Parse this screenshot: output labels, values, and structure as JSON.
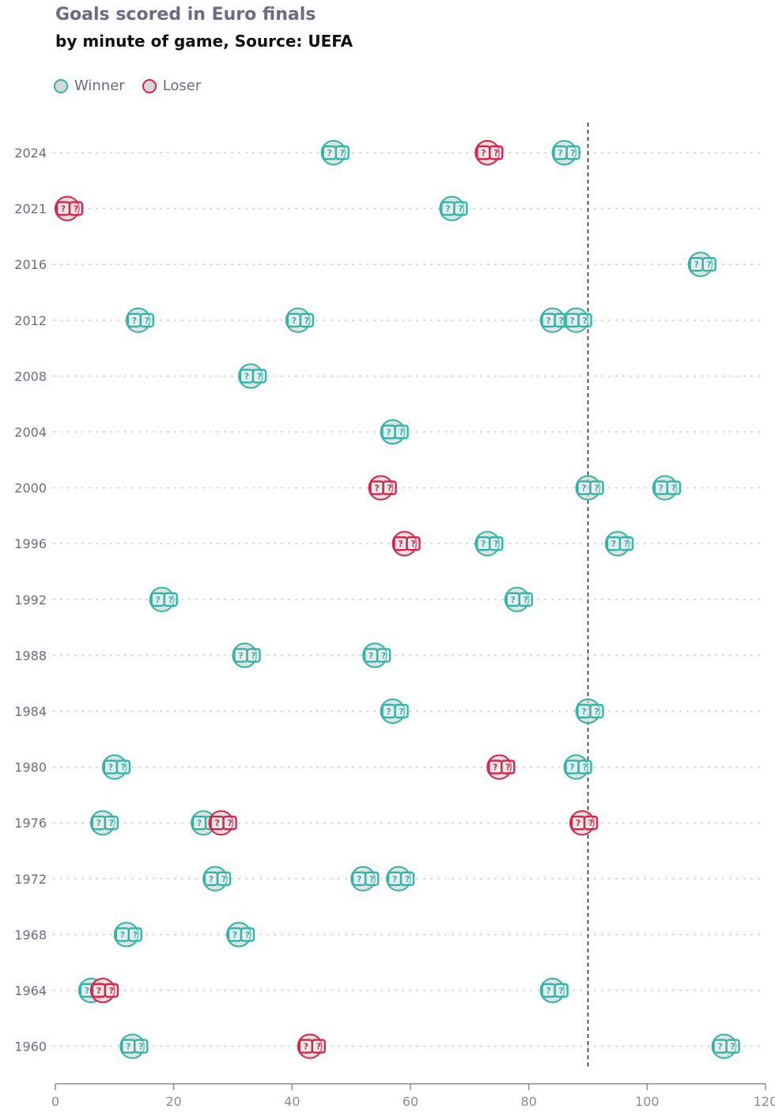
{
  "title": "Goals scored in Euro finals",
  "subtitle": "by minute of game, Source: UEFA",
  "legend": {
    "winner": "Winner",
    "loser": "Loser"
  },
  "colors": {
    "winner": "#2fb5ac",
    "loser": "#e0204a",
    "fill": "#d6d9d6",
    "axis": "#8a8aa0",
    "title": "#6b6b85"
  },
  "chart_data": {
    "type": "scatter",
    "x_ticks": [
      0,
      20,
      40,
      60,
      80,
      100,
      120
    ],
    "xlim": [
      0,
      120
    ],
    "reference_line_x": 90,
    "categories": [
      "2024",
      "2021",
      "2016",
      "2012",
      "2008",
      "2004",
      "2000",
      "1996",
      "1992",
      "1988",
      "1984",
      "1980",
      "1976",
      "1972",
      "1968",
      "1964",
      "1960"
    ],
    "series": [
      {
        "name": "Winner",
        "points": [
          {
            "year": "2024",
            "x": 47
          },
          {
            "year": "2024",
            "x": 86
          },
          {
            "year": "2021",
            "x": 67
          },
          {
            "year": "2016",
            "x": 109
          },
          {
            "year": "2012",
            "x": 14
          },
          {
            "year": "2012",
            "x": 41
          },
          {
            "year": "2012",
            "x": 84
          },
          {
            "year": "2012",
            "x": 88
          },
          {
            "year": "2008",
            "x": 33
          },
          {
            "year": "2004",
            "x": 57
          },
          {
            "year": "2000",
            "x": 90
          },
          {
            "year": "2000",
            "x": 103
          },
          {
            "year": "1996",
            "x": 73
          },
          {
            "year": "1996",
            "x": 95
          },
          {
            "year": "1992",
            "x": 18
          },
          {
            "year": "1992",
            "x": 78
          },
          {
            "year": "1988",
            "x": 32
          },
          {
            "year": "1988",
            "x": 54
          },
          {
            "year": "1984",
            "x": 57
          },
          {
            "year": "1984",
            "x": 90
          },
          {
            "year": "1980",
            "x": 10
          },
          {
            "year": "1980",
            "x": 88
          },
          {
            "year": "1976",
            "x": 8
          },
          {
            "year": "1976",
            "x": 25
          },
          {
            "year": "1972",
            "x": 27
          },
          {
            "year": "1972",
            "x": 52
          },
          {
            "year": "1972",
            "x": 58
          },
          {
            "year": "1968",
            "x": 12
          },
          {
            "year": "1968",
            "x": 31
          },
          {
            "year": "1964",
            "x": 6
          },
          {
            "year": "1964",
            "x": 84
          },
          {
            "year": "1960",
            "x": 13
          },
          {
            "year": "1960",
            "x": 113
          }
        ]
      },
      {
        "name": "Loser",
        "points": [
          {
            "year": "2024",
            "x": 73
          },
          {
            "year": "2021",
            "x": 2
          },
          {
            "year": "2000",
            "x": 55
          },
          {
            "year": "1996",
            "x": 59
          },
          {
            "year": "1980",
            "x": 75
          },
          {
            "year": "1976",
            "x": 28
          },
          {
            "year": "1976",
            "x": 89
          },
          {
            "year": "1964",
            "x": 8
          },
          {
            "year": "1960",
            "x": 43
          }
        ]
      }
    ]
  }
}
